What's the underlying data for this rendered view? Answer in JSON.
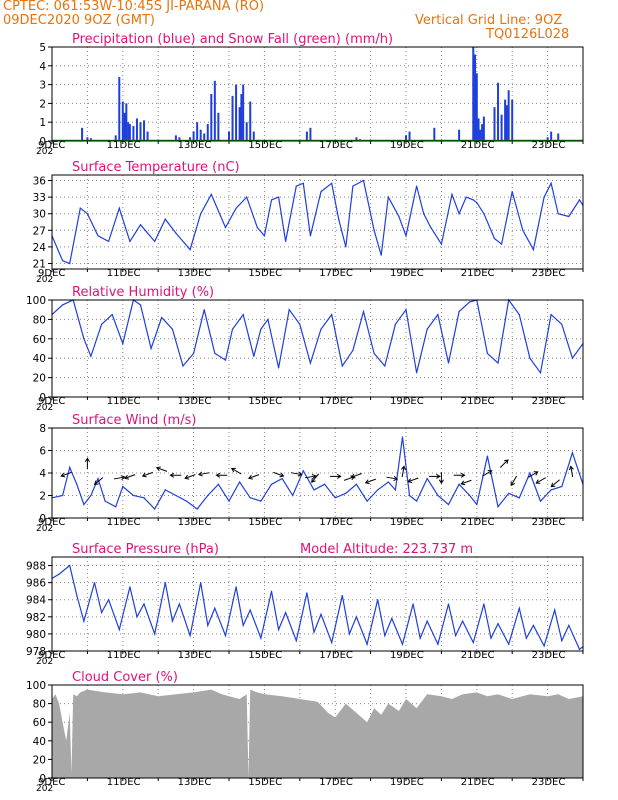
{
  "header": {
    "line1": "CPTEC:   061:53W-10:45S  JI-PARANA (RO)",
    "line2": "09DEC2020 9OZ (GMT)",
    "grid_note": "Vertical Grid Line: 9OZ",
    "code": "TQ0126L028",
    "altitude": "Model Altitude: 223.737 m",
    "year_fragment": "202",
    "colors": {
      "header": "#e8730c",
      "title": "#e0127a",
      "series": "#1f3fdd",
      "snow": "#00a000",
      "cloud": "#a8a8a8"
    }
  },
  "x_ticks": [
    "9DEC",
    "11DEC",
    "13DEC",
    "15DEC",
    "17DEC",
    "19DEC",
    "21DEC",
    "23DEC"
  ],
  "chart_data": [
    {
      "type": "bar",
      "title": "Precipitation (blue) and Snow Fall (green) (mm/h)",
      "yticks": [
        "0",
        "1",
        "2",
        "3",
        "4",
        "5"
      ],
      "ylim": [
        0,
        5
      ],
      "grid": true,
      "series": [
        {
          "name": "Precipitation",
          "color": "#1f3fdd",
          "x": [
            9.85,
            10.0,
            10.1,
            10.8,
            10.9,
            11.0,
            11.05,
            11.1,
            11.15,
            11.2,
            11.3,
            11.4,
            11.5,
            11.6,
            11.7,
            12.5,
            12.6,
            12.9,
            13.0,
            13.1,
            13.2,
            13.3,
            13.4,
            13.5,
            13.6,
            13.7,
            14.0,
            14.1,
            14.2,
            14.3,
            14.35,
            14.4,
            14.5,
            14.6,
            14.7,
            16.2,
            16.3,
            17.6,
            17.7,
            19.0,
            19.1,
            19.8,
            20.5,
            20.9,
            20.95,
            21.0,
            21.05,
            21.1,
            21.15,
            21.2,
            21.5,
            21.6,
            21.7,
            21.8,
            21.85,
            21.9,
            22.0,
            23.0,
            23.1,
            23.3
          ],
          "values": [
            0.7,
            0.2,
            0.15,
            0.3,
            3.4,
            2.1,
            1.5,
            2.0,
            1.0,
            0.9,
            0.8,
            1.2,
            1.0,
            1.1,
            0.5,
            0.3,
            0.2,
            0.2,
            0.5,
            1.0,
            0.6,
            0.4,
            0.9,
            2.5,
            3.2,
            1.5,
            0.5,
            2.4,
            3.0,
            1.8,
            2.5,
            3.0,
            1.0,
            2.1,
            0.5,
            0.5,
            0.7,
            0.2,
            0.1,
            0.3,
            0.5,
            0.7,
            0.6,
            5.0,
            4.6,
            3.6,
            1.2,
            0.6,
            0.9,
            1.3,
            1.8,
            3.1,
            1.4,
            2.2,
            1.9,
            2.7,
            2.2,
            0.2,
            0.5,
            0.4
          ]
        },
        {
          "name": "Snow Fall",
          "color": "#00a000",
          "x": [
            9.0,
            24.0
          ],
          "values": [
            0,
            0
          ]
        }
      ]
    },
    {
      "type": "line",
      "title": "Surface Temperature (nC)",
      "yticks": [
        "21",
        "24",
        "27",
        "30",
        "33",
        "36"
      ],
      "ylim": [
        20,
        37
      ],
      "grid": true,
      "series": [
        {
          "color": "#1f3fdd",
          "x": [
            9.0,
            9.3,
            9.5,
            9.8,
            10.0,
            10.3,
            10.6,
            10.9,
            11.2,
            11.5,
            11.9,
            12.2,
            12.5,
            12.9,
            13.2,
            13.5,
            13.9,
            14.2,
            14.5,
            14.8,
            15.0,
            15.2,
            15.4,
            15.6,
            15.9,
            16.1,
            16.3,
            16.6,
            16.9,
            17.1,
            17.3,
            17.5,
            17.8,
            18.1,
            18.3,
            18.5,
            18.8,
            19.0,
            19.3,
            19.5,
            19.7,
            20.0,
            20.3,
            20.5,
            20.7,
            20.9,
            21.0,
            21.2,
            21.5,
            21.7,
            22.0,
            22.3,
            22.6,
            22.9,
            23.1,
            23.3,
            23.6,
            23.9,
            24.0
          ],
          "values": [
            26.0,
            21.5,
            21.0,
            31.0,
            30.0,
            26.0,
            25.0,
            31.0,
            25.0,
            28.0,
            25.0,
            29.0,
            26.5,
            23.5,
            30.0,
            33.5,
            27.5,
            31.0,
            33.0,
            27.5,
            26.0,
            32.5,
            33.0,
            25.0,
            35.0,
            35.5,
            26.0,
            34.0,
            35.5,
            29.0,
            24.0,
            35.0,
            36.0,
            27.0,
            22.5,
            33.0,
            29.5,
            26.0,
            35.0,
            30.0,
            27.5,
            24.5,
            33.5,
            30.0,
            33.0,
            32.5,
            32.0,
            30.0,
            25.5,
            24.5,
            34.0,
            27.0,
            23.5,
            33.0,
            35.5,
            30.0,
            29.5,
            32.5,
            31.5
          ]
        }
      ]
    },
    {
      "type": "line",
      "title": "Relative Humidity (%)",
      "yticks": [
        "0",
        "20",
        "40",
        "60",
        "80",
        "100"
      ],
      "ylim": [
        0,
        100
      ],
      "grid": true,
      "series": [
        {
          "color": "#1f3fdd",
          "x": [
            9.0,
            9.3,
            9.6,
            9.9,
            10.1,
            10.4,
            10.7,
            11.0,
            11.3,
            11.5,
            11.8,
            12.1,
            12.4,
            12.7,
            13.0,
            13.3,
            13.6,
            13.9,
            14.1,
            14.4,
            14.7,
            14.9,
            15.1,
            15.4,
            15.7,
            16.0,
            16.3,
            16.6,
            16.9,
            17.2,
            17.5,
            17.8,
            18.1,
            18.4,
            18.7,
            19.0,
            19.3,
            19.6,
            19.9,
            20.2,
            20.5,
            20.8,
            21.0,
            21.3,
            21.6,
            21.9,
            22.2,
            22.5,
            22.8,
            23.1,
            23.4,
            23.7,
            24.0
          ],
          "values": [
            85,
            95,
            100,
            60,
            42,
            75,
            85,
            55,
            100,
            95,
            50,
            82,
            70,
            32,
            45,
            90,
            45,
            38,
            70,
            85,
            42,
            70,
            80,
            30,
            90,
            75,
            35,
            70,
            85,
            32,
            48,
            88,
            45,
            32,
            75,
            90,
            25,
            70,
            85,
            35,
            88,
            98,
            100,
            45,
            35,
            100,
            85,
            40,
            25,
            85,
            75,
            40,
            55
          ]
        }
      ]
    },
    {
      "type": "line",
      "title": "Surface Wind (m/s)",
      "yticks": [
        "0",
        "2",
        "4",
        "6",
        "8"
      ],
      "ylim": [
        0,
        8
      ],
      "grid": true,
      "series": [
        {
          "color": "#1f3fdd",
          "x": [
            9.0,
            9.3,
            9.5,
            9.7,
            9.9,
            10.1,
            10.3,
            10.5,
            10.8,
            11.0,
            11.3,
            11.6,
            11.9,
            12.2,
            12.5,
            12.8,
            13.1,
            13.4,
            13.7,
            14.0,
            14.3,
            14.6,
            14.9,
            15.2,
            15.5,
            15.8,
            16.1,
            16.4,
            16.7,
            17.0,
            17.3,
            17.6,
            17.9,
            18.2,
            18.5,
            18.7,
            18.9,
            19.1,
            19.3,
            19.6,
            19.9,
            20.2,
            20.5,
            20.8,
            21.0,
            21.3,
            21.6,
            21.9,
            22.2,
            22.5,
            22.8,
            23.1,
            23.4,
            23.7,
            24.0
          ],
          "values": [
            1.8,
            2.0,
            4.5,
            3.0,
            1.2,
            2.0,
            3.5,
            1.5,
            1.0,
            2.8,
            2.0,
            1.8,
            0.8,
            2.5,
            2.0,
            1.5,
            0.8,
            2.0,
            3.0,
            1.5,
            3.2,
            1.8,
            1.5,
            3.0,
            3.5,
            2.0,
            4.2,
            2.5,
            3.0,
            1.8,
            2.2,
            3.0,
            1.5,
            2.5,
            3.2,
            2.5,
            7.2,
            2.0,
            1.5,
            3.5,
            2.0,
            1.2,
            3.0,
            2.0,
            1.2,
            5.5,
            1.0,
            2.2,
            1.8,
            4.0,
            1.5,
            2.5,
            2.8,
            5.8,
            3.0
          ]
        }
      ],
      "wind_arrows": {
        "x": [
          9.5,
          10.0,
          10.4,
          10.8,
          11.3,
          11.8,
          12.2,
          12.6,
          13.0,
          13.4,
          13.9,
          14.3,
          14.8,
          15.3,
          15.8,
          16.2,
          16.5,
          16.9,
          17.3,
          17.7,
          18.1,
          18.5,
          18.9,
          19.3,
          19.7,
          20.0,
          20.4,
          20.8,
          21.2,
          21.7,
          22.1,
          22.5,
          22.9,
          23.3,
          23.7
        ],
        "y": [
          4.0,
          4.5,
          3.5,
          3.5,
          3.8,
          4.0,
          4.2,
          3.8,
          3.8,
          4.0,
          3.8,
          4.0,
          3.8,
          4.0,
          4.0,
          3.6,
          3.8,
          3.7,
          3.4,
          3.9,
          3.4,
          3.6,
          3.8,
          3.5,
          3.7,
          3.9,
          3.8,
          3.3,
          3.8,
          4.6,
          3.6,
          3.7,
          3.5,
          3.3,
          3.8
        ],
        "angle_deg": [
          200,
          90,
          220,
          10,
          200,
          200,
          160,
          180,
          200,
          190,
          180,
          150,
          200,
          340,
          350,
          10,
          230,
          0,
          20,
          200,
          200,
          350,
          80,
          200,
          0,
          270,
          0,
          200,
          30,
          45,
          240,
          30,
          210,
          220,
          100
        ]
      }
    },
    {
      "type": "line",
      "title": "Surface Pressure (hPa)",
      "yticks": [
        "978",
        "980",
        "982",
        "984",
        "986",
        "988"
      ],
      "ylim": [
        978,
        989
      ],
      "grid": true,
      "series": [
        {
          "color": "#1f3fdd",
          "x": [
            9.0,
            9.2,
            9.5,
            9.7,
            9.9,
            10.2,
            10.4,
            10.6,
            10.9,
            11.2,
            11.4,
            11.6,
            11.9,
            12.2,
            12.4,
            12.6,
            12.9,
            13.2,
            13.4,
            13.6,
            13.9,
            14.2,
            14.4,
            14.6,
            14.9,
            15.2,
            15.4,
            15.6,
            15.9,
            16.2,
            16.4,
            16.6,
            16.9,
            17.2,
            17.4,
            17.6,
            17.9,
            18.2,
            18.4,
            18.6,
            18.9,
            19.2,
            19.4,
            19.6,
            19.9,
            20.2,
            20.4,
            20.6,
            20.9,
            21.2,
            21.4,
            21.6,
            21.9,
            22.2,
            22.4,
            22.6,
            22.9,
            23.2,
            23.4,
            23.6,
            23.9,
            24.0
          ],
          "values": [
            986.5,
            987.0,
            988.0,
            984.5,
            981.5,
            986.0,
            982.5,
            984.0,
            980.5,
            985.5,
            982.0,
            983.5,
            980.0,
            986.0,
            981.5,
            983.5,
            979.8,
            986.0,
            981.0,
            983.0,
            979.8,
            985.5,
            981.0,
            982.8,
            979.5,
            985.0,
            980.5,
            982.5,
            979.2,
            984.8,
            980.2,
            982.3,
            979.0,
            984.5,
            980.0,
            982.0,
            978.8,
            984.0,
            979.8,
            981.8,
            978.8,
            983.5,
            979.5,
            981.5,
            978.8,
            983.5,
            979.8,
            981.5,
            979.0,
            983.5,
            979.5,
            981.2,
            978.8,
            983.0,
            979.5,
            981.0,
            978.6,
            982.8,
            979.2,
            981.0,
            978.2,
            978.5
          ]
        }
      ]
    },
    {
      "type": "area",
      "title": "Cloud Cover (%)",
      "yticks": [
        "0",
        "20",
        "40",
        "60",
        "80",
        "100"
      ],
      "ylim": [
        0,
        100
      ],
      "grid": true,
      "series": [
        {
          "color": "#a8a8a8",
          "x": [
            9.0,
            9.1,
            9.2,
            9.3,
            9.4,
            9.5,
            9.55,
            9.6,
            9.7,
            9.8,
            10.0,
            10.5,
            11.0,
            11.5,
            12.0,
            12.5,
            13.0,
            13.5,
            13.8,
            14.0,
            14.3,
            14.5,
            14.55,
            14.6,
            14.8,
            15.0,
            15.5,
            16.0,
            16.5,
            16.8,
            17.0,
            17.3,
            17.6,
            17.9,
            18.1,
            18.3,
            18.5,
            18.8,
            19.0,
            19.3,
            19.6,
            20.0,
            20.3,
            20.6,
            21.0,
            21.3,
            21.6,
            22.0,
            22.5,
            23.0,
            23.3,
            23.6,
            24.0
          ],
          "values": [
            85,
            90,
            80,
            60,
            40,
            70,
            5,
            90,
            88,
            92,
            95,
            92,
            90,
            92,
            88,
            90,
            92,
            95,
            90,
            88,
            85,
            90,
            0,
            95,
            92,
            90,
            88,
            85,
            82,
            70,
            65,
            80,
            70,
            60,
            75,
            68,
            80,
            72,
            85,
            75,
            90,
            88,
            85,
            90,
            92,
            88,
            90,
            85,
            90,
            88,
            90,
            85,
            88
          ]
        }
      ]
    }
  ]
}
